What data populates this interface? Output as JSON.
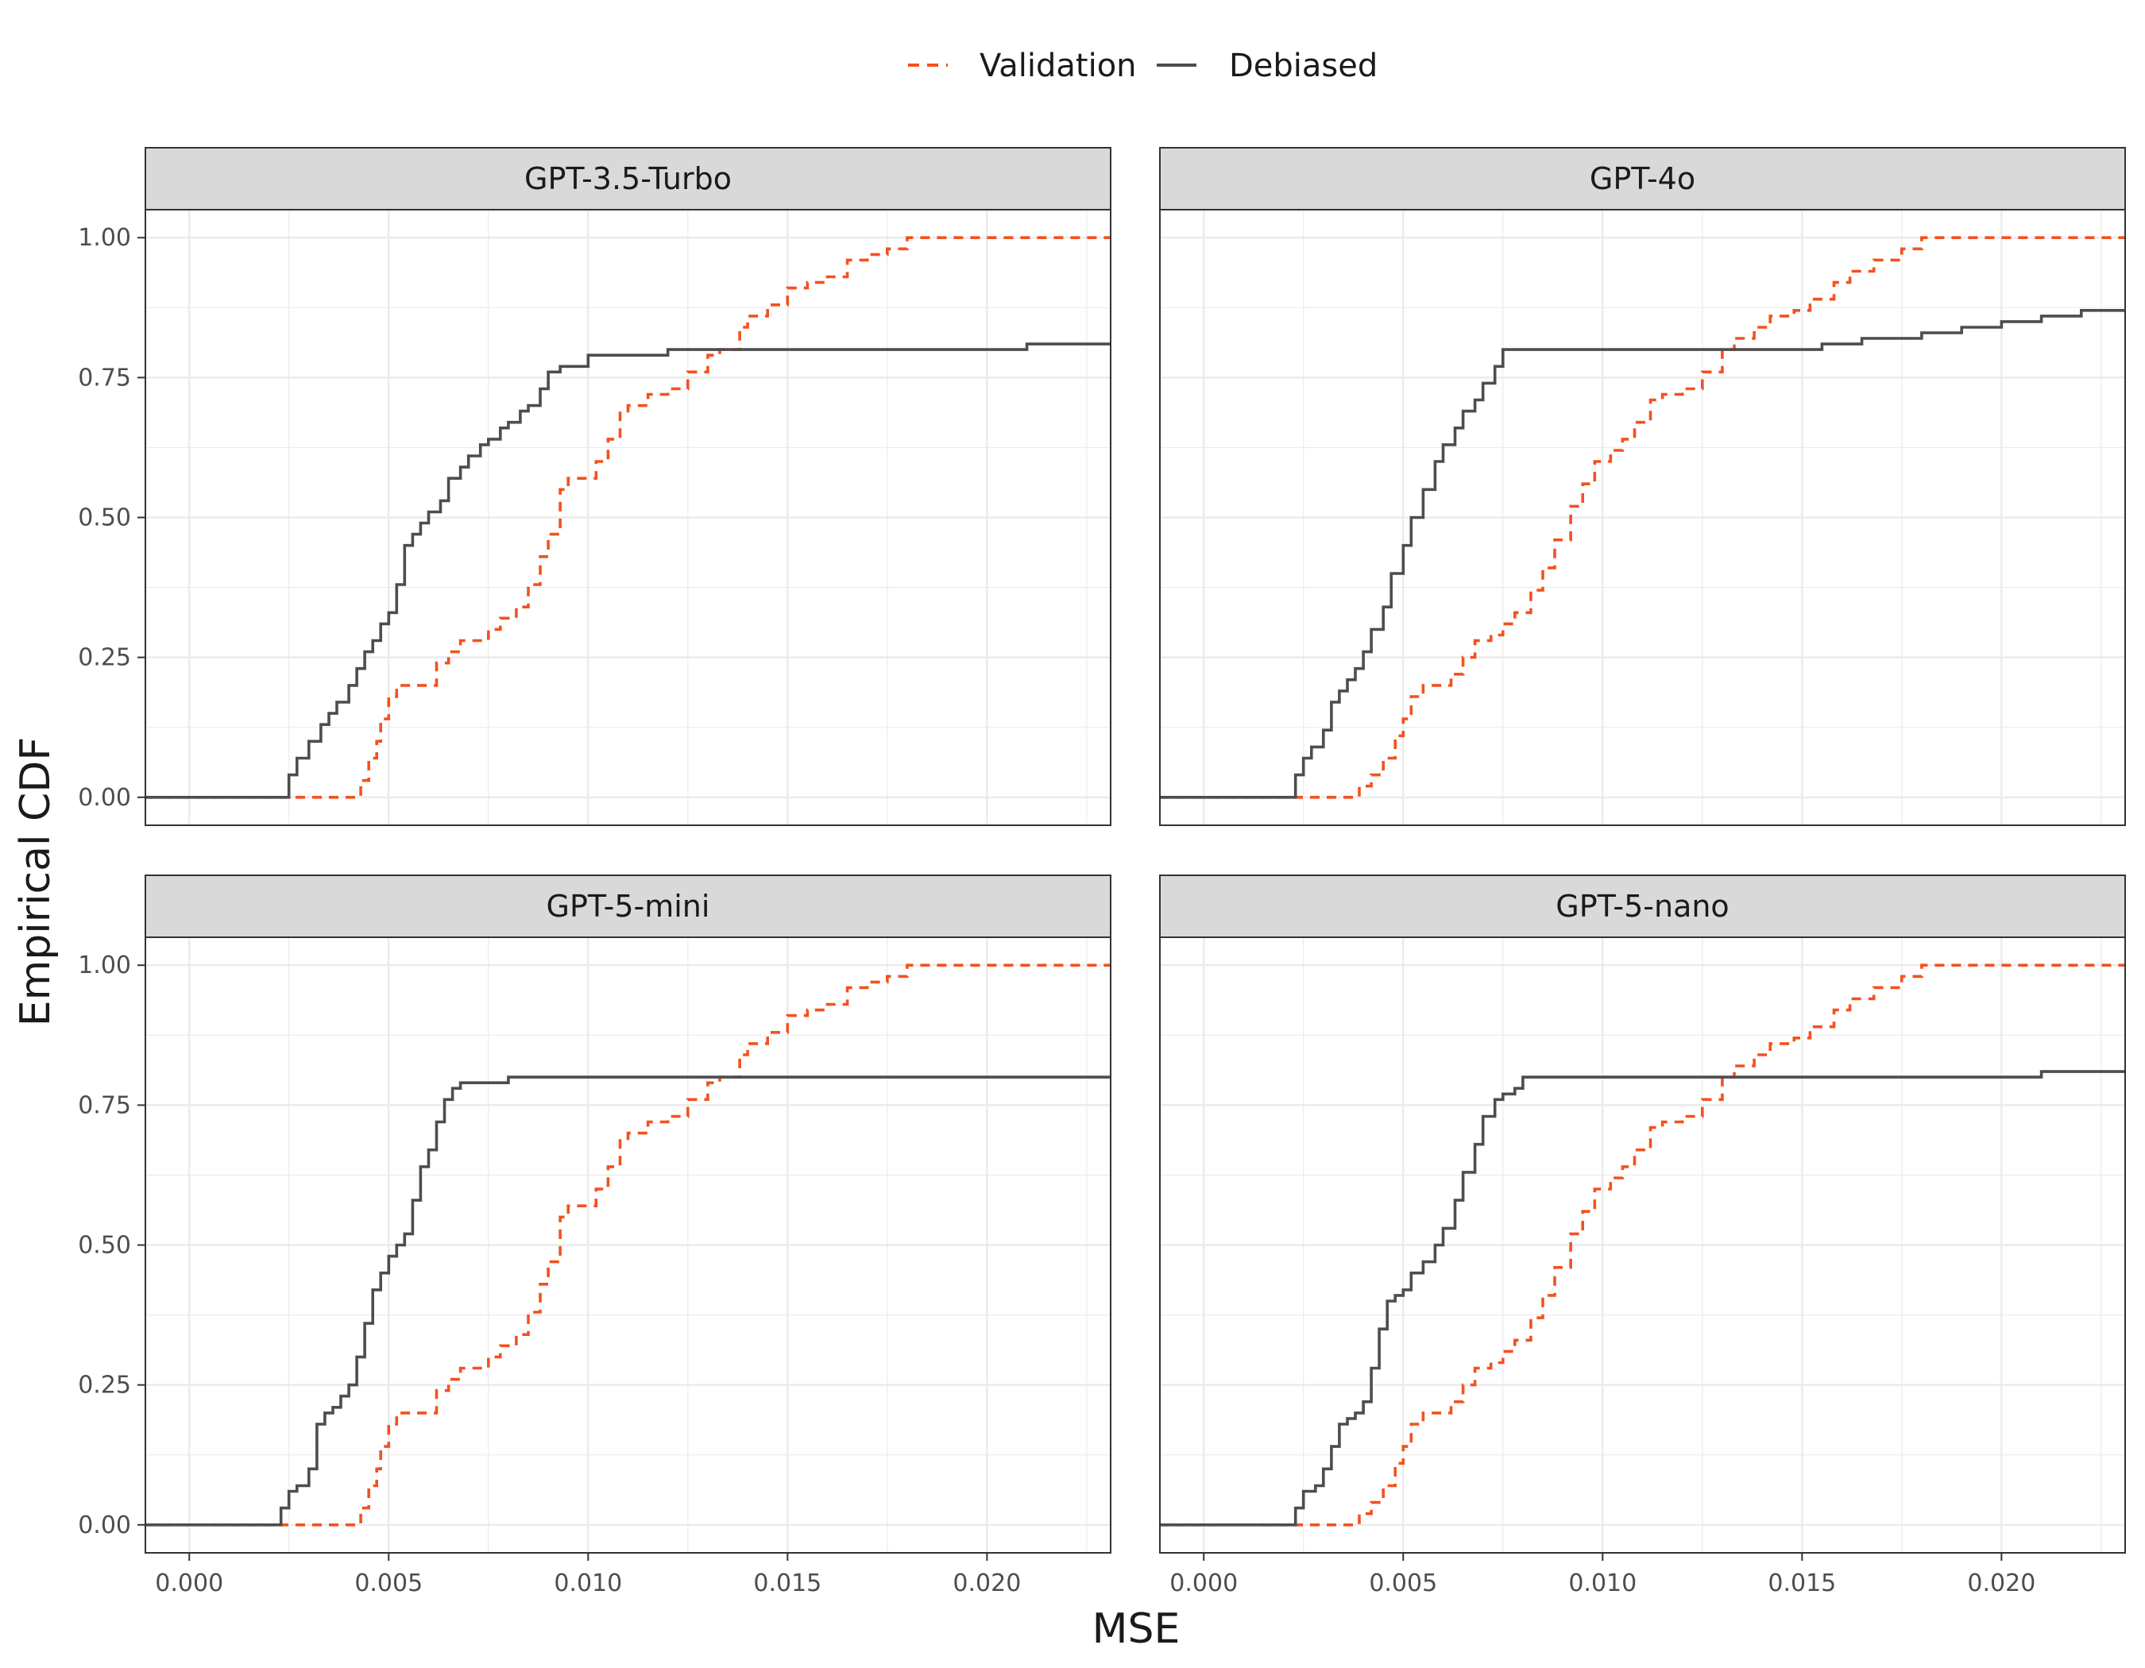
{
  "legend": {
    "items": [
      {
        "label": "Validation",
        "color": "#F4511E",
        "style": "dashed"
      },
      {
        "label": "Debiased",
        "color": "#4D4D4D",
        "style": "solid"
      }
    ]
  },
  "chart_data": {
    "type": "line",
    "subtype": "empirical-cdf-step",
    "facet_layout": "2x2",
    "legend_position": "top",
    "grid": true,
    "xlabel": "MSE",
    "ylabel": "Empirical CDF",
    "xlim": [
      -0.0011,
      0.0231
    ],
    "ylim": [
      -0.05,
      1.05
    ],
    "x_ticks": [
      0.0,
      0.005,
      0.01,
      0.015,
      0.02
    ],
    "x_tick_labels": [
      "0.000",
      "0.005",
      "0.010",
      "0.015",
      "0.020"
    ],
    "y_ticks": [
      0.0,
      0.25,
      0.5,
      0.75,
      1.0
    ],
    "y_tick_labels": [
      "0.00",
      "0.25",
      "0.50",
      "0.75",
      "1.00"
    ],
    "panels": [
      {
        "title": "GPT-3.5-Turbo",
        "series": [
          {
            "name": "Validation",
            "x": [
              -0.0011,
              0.0024,
              0.004,
              0.0043,
              0.0045,
              0.0047,
              0.0048,
              0.005,
              0.0052,
              0.0055,
              0.006,
              0.0062,
              0.0065,
              0.0068,
              0.0072,
              0.0075,
              0.0078,
              0.008,
              0.0082,
              0.0085,
              0.0088,
              0.009,
              0.0093,
              0.0095,
              0.0098,
              0.0102,
              0.0105,
              0.0108,
              0.011,
              0.0115,
              0.012,
              0.0125,
              0.013,
              0.0133,
              0.0138,
              0.014,
              0.0145,
              0.015,
              0.0155,
              0.016,
              0.0165,
              0.017,
              0.0175,
              0.018,
              0.0231
            ],
            "y": [
              0,
              0,
              0,
              0.03,
              0.07,
              0.1,
              0.14,
              0.18,
              0.2,
              0.2,
              0.2,
              0.24,
              0.26,
              0.28,
              0.28,
              0.3,
              0.32,
              0.32,
              0.34,
              0.38,
              0.43,
              0.47,
              0.55,
              0.57,
              0.57,
              0.6,
              0.64,
              0.69,
              0.7,
              0.72,
              0.73,
              0.76,
              0.79,
              0.8,
              0.84,
              0.86,
              0.88,
              0.91,
              0.92,
              0.93,
              0.96,
              0.97,
              0.98,
              1.0,
              1.0
            ]
          },
          {
            "name": "Debiased",
            "x": [
              -0.0011,
              0.0023,
              0.0025,
              0.0027,
              0.003,
              0.0033,
              0.0035,
              0.0037,
              0.004,
              0.0042,
              0.0044,
              0.0046,
              0.0048,
              0.005,
              0.0052,
              0.0054,
              0.0056,
              0.0058,
              0.006,
              0.0063,
              0.0065,
              0.0068,
              0.007,
              0.0073,
              0.0075,
              0.0078,
              0.008,
              0.0083,
              0.0085,
              0.0088,
              0.009,
              0.0093,
              0.0095,
              0.01,
              0.0115,
              0.012,
              0.0133,
              0.0195,
              0.021,
              0.0231
            ],
            "y": [
              0,
              0,
              0.04,
              0.07,
              0.1,
              0.13,
              0.15,
              0.17,
              0.2,
              0.23,
              0.26,
              0.28,
              0.31,
              0.33,
              0.38,
              0.45,
              0.47,
              0.49,
              0.51,
              0.53,
              0.57,
              0.59,
              0.61,
              0.63,
              0.64,
              0.66,
              0.67,
              0.69,
              0.7,
              0.73,
              0.76,
              0.77,
              0.77,
              0.79,
              0.79,
              0.8,
              0.8,
              0.8,
              0.81,
              0.81
            ]
          }
        ]
      },
      {
        "title": "GPT-4o",
        "series": [
          {
            "name": "Validation",
            "x": [
              -0.0011,
              0.0021,
              0.0037,
              0.0039,
              0.0042,
              0.0045,
              0.0048,
              0.005,
              0.0052,
              0.0055,
              0.0058,
              0.0062,
              0.0065,
              0.0068,
              0.0072,
              0.0075,
              0.0078,
              0.0082,
              0.0085,
              0.0088,
              0.0092,
              0.0095,
              0.0098,
              0.0102,
              0.0105,
              0.0108,
              0.0112,
              0.0115,
              0.012,
              0.0125,
              0.013,
              0.0133,
              0.0138,
              0.0142,
              0.0148,
              0.0152,
              0.0158,
              0.0162,
              0.0168,
              0.0175,
              0.018,
              0.0231
            ],
            "y": [
              0,
              0,
              0,
              0.02,
              0.04,
              0.07,
              0.11,
              0.14,
              0.18,
              0.2,
              0.2,
              0.22,
              0.25,
              0.28,
              0.29,
              0.31,
              0.33,
              0.37,
              0.41,
              0.46,
              0.52,
              0.56,
              0.6,
              0.62,
              0.64,
              0.67,
              0.71,
              0.72,
              0.73,
              0.76,
              0.8,
              0.82,
              0.84,
              0.86,
              0.87,
              0.89,
              0.92,
              0.94,
              0.96,
              0.98,
              1.0,
              1.0
            ]
          },
          {
            "name": "Debiased",
            "x": [
              -0.0011,
              0.0021,
              0.0023,
              0.0025,
              0.0027,
              0.003,
              0.0032,
              0.0034,
              0.0036,
              0.0038,
              0.004,
              0.0042,
              0.0045,
              0.0047,
              0.005,
              0.0052,
              0.0055,
              0.0058,
              0.006,
              0.0063,
              0.0065,
              0.0068,
              0.007,
              0.0073,
              0.0075,
              0.0078,
              0.0082,
              0.0095,
              0.0105,
              0.0125,
              0.0155,
              0.0165,
              0.018,
              0.019,
              0.02,
              0.021,
              0.022,
              0.0231
            ],
            "y": [
              0,
              0,
              0.04,
              0.07,
              0.09,
              0.12,
              0.17,
              0.19,
              0.21,
              0.23,
              0.26,
              0.3,
              0.34,
              0.4,
              0.45,
              0.5,
              0.55,
              0.6,
              0.63,
              0.66,
              0.69,
              0.71,
              0.74,
              0.77,
              0.8,
              0.8,
              0.8,
              0.8,
              0.8,
              0.8,
              0.81,
              0.82,
              0.83,
              0.84,
              0.85,
              0.86,
              0.87,
              0.87
            ]
          }
        ]
      },
      {
        "title": "GPT-5-mini",
        "series": [
          {
            "name": "Validation",
            "x": [
              -0.0011,
              0.0024,
              0.004,
              0.0043,
              0.0045,
              0.0047,
              0.0048,
              0.005,
              0.0052,
              0.0055,
              0.006,
              0.0062,
              0.0065,
              0.0068,
              0.0072,
              0.0075,
              0.0078,
              0.008,
              0.0082,
              0.0085,
              0.0088,
              0.009,
              0.0093,
              0.0095,
              0.0098,
              0.0102,
              0.0105,
              0.0108,
              0.011,
              0.0115,
              0.012,
              0.0125,
              0.013,
              0.0133,
              0.0138,
              0.014,
              0.0145,
              0.015,
              0.0155,
              0.016,
              0.0165,
              0.017,
              0.0175,
              0.018,
              0.0231
            ],
            "y": [
              0,
              0,
              0,
              0.03,
              0.07,
              0.1,
              0.14,
              0.18,
              0.2,
              0.2,
              0.2,
              0.24,
              0.26,
              0.28,
              0.28,
              0.3,
              0.32,
              0.32,
              0.34,
              0.38,
              0.43,
              0.47,
              0.55,
              0.57,
              0.57,
              0.6,
              0.64,
              0.69,
              0.7,
              0.72,
              0.73,
              0.76,
              0.79,
              0.8,
              0.84,
              0.86,
              0.88,
              0.91,
              0.92,
              0.93,
              0.96,
              0.97,
              0.98,
              1.0,
              1.0
            ]
          },
          {
            "name": "Debiased",
            "x": [
              -0.0011,
              0.0021,
              0.0023,
              0.0025,
              0.0027,
              0.003,
              0.0032,
              0.0034,
              0.0036,
              0.0038,
              0.004,
              0.0042,
              0.0044,
              0.0046,
              0.0048,
              0.005,
              0.0052,
              0.0054,
              0.0056,
              0.0058,
              0.006,
              0.0062,
              0.0064,
              0.0066,
              0.0068,
              0.007,
              0.0072,
              0.008,
              0.0231
            ],
            "y": [
              0,
              0,
              0.03,
              0.06,
              0.07,
              0.1,
              0.18,
              0.2,
              0.21,
              0.23,
              0.25,
              0.3,
              0.36,
              0.42,
              0.45,
              0.48,
              0.5,
              0.52,
              0.58,
              0.64,
              0.67,
              0.72,
              0.76,
              0.78,
              0.79,
              0.79,
              0.79,
              0.8,
              0.8
            ]
          }
        ]
      },
      {
        "title": "GPT-5-nano",
        "series": [
          {
            "name": "Validation",
            "x": [
              -0.0011,
              0.0021,
              0.0037,
              0.0039,
              0.0042,
              0.0045,
              0.0048,
              0.005,
              0.0052,
              0.0055,
              0.0058,
              0.0062,
              0.0065,
              0.0068,
              0.0072,
              0.0075,
              0.0078,
              0.0082,
              0.0085,
              0.0088,
              0.0092,
              0.0095,
              0.0098,
              0.0102,
              0.0105,
              0.0108,
              0.0112,
              0.0115,
              0.012,
              0.0125,
              0.013,
              0.0133,
              0.0138,
              0.0142,
              0.0148,
              0.0152,
              0.0158,
              0.0162,
              0.0168,
              0.0175,
              0.018,
              0.0231
            ],
            "y": [
              0,
              0,
              0,
              0.02,
              0.04,
              0.07,
              0.11,
              0.14,
              0.18,
              0.2,
              0.2,
              0.22,
              0.25,
              0.28,
              0.29,
              0.31,
              0.33,
              0.37,
              0.41,
              0.46,
              0.52,
              0.56,
              0.6,
              0.62,
              0.64,
              0.67,
              0.71,
              0.72,
              0.73,
              0.76,
              0.8,
              0.82,
              0.84,
              0.86,
              0.87,
              0.89,
              0.92,
              0.94,
              0.96,
              0.98,
              1.0,
              1.0
            ]
          },
          {
            "name": "Debiased",
            "x": [
              -0.0011,
              0.0021,
              0.0023,
              0.0025,
              0.0028,
              0.003,
              0.0032,
              0.0034,
              0.0036,
              0.0038,
              0.004,
              0.0042,
              0.0044,
              0.0046,
              0.0048,
              0.005,
              0.0052,
              0.0055,
              0.0058,
              0.006,
              0.0063,
              0.0065,
              0.0068,
              0.007,
              0.0073,
              0.0075,
              0.0078,
              0.008,
              0.0085,
              0.0095,
              0.021,
              0.0231
            ],
            "y": [
              0,
              0,
              0.03,
              0.06,
              0.07,
              0.1,
              0.14,
              0.18,
              0.19,
              0.2,
              0.22,
              0.28,
              0.35,
              0.4,
              0.41,
              0.42,
              0.45,
              0.47,
              0.5,
              0.53,
              0.58,
              0.63,
              0.68,
              0.73,
              0.76,
              0.77,
              0.78,
              0.8,
              0.8,
              0.8,
              0.81,
              0.81
            ]
          }
        ]
      }
    ]
  }
}
